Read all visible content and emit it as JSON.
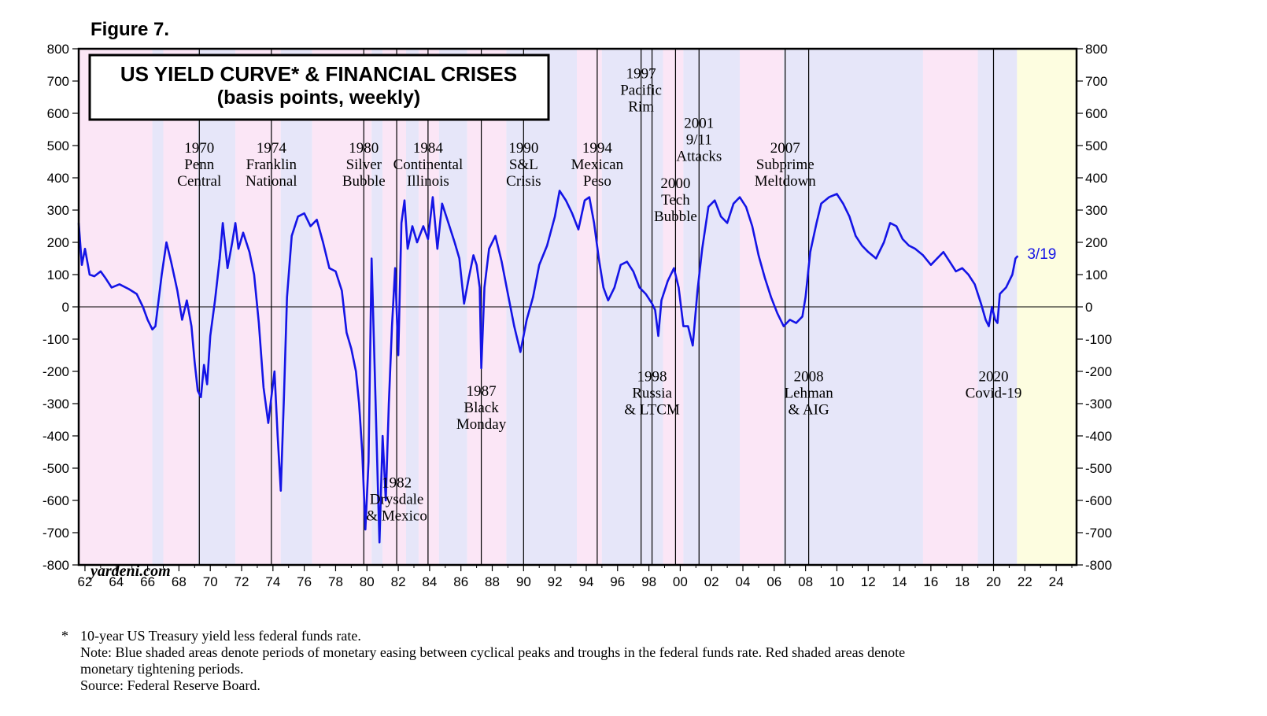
{
  "figure_label": "Figure 7.",
  "chart_data": {
    "type": "line",
    "title": "US YIELD CURVE* & FINANCIAL CRISES",
    "subtitle": "(basis points, weekly)",
    "watermark": "yardeni.com",
    "x_range": [
      1961.6,
      2025.3
    ],
    "ylim": [
      -800,
      800
    ],
    "y_ticks": [
      800,
      700,
      600,
      500,
      400,
      300,
      200,
      100,
      0,
      -100,
      -200,
      -300,
      -400,
      -500,
      -600,
      -700,
      -800
    ],
    "x_ticks": [
      {
        "year": 1962,
        "label": "62"
      },
      {
        "year": 1964,
        "label": "64"
      },
      {
        "year": 1966,
        "label": "66"
      },
      {
        "year": 1968,
        "label": "68"
      },
      {
        "year": 1970,
        "label": "70"
      },
      {
        "year": 1972,
        "label": "72"
      },
      {
        "year": 1974,
        "label": "74"
      },
      {
        "year": 1976,
        "label": "76"
      },
      {
        "year": 1978,
        "label": "78"
      },
      {
        "year": 1980,
        "label": "80"
      },
      {
        "year": 1982,
        "label": "82"
      },
      {
        "year": 1984,
        "label": "84"
      },
      {
        "year": 1986,
        "label": "86"
      },
      {
        "year": 1988,
        "label": "88"
      },
      {
        "year": 1990,
        "label": "90"
      },
      {
        "year": 1992,
        "label": "92"
      },
      {
        "year": 1994,
        "label": "94"
      },
      {
        "year": 1996,
        "label": "96"
      },
      {
        "year": 1998,
        "label": "98"
      },
      {
        "year": 2000,
        "label": "00"
      },
      {
        "year": 2002,
        "label": "02"
      },
      {
        "year": 2004,
        "label": "04"
      },
      {
        "year": 2006,
        "label": "06"
      },
      {
        "year": 2008,
        "label": "08"
      },
      {
        "year": 2010,
        "label": "10"
      },
      {
        "year": 2012,
        "label": "12"
      },
      {
        "year": 2014,
        "label": "14"
      },
      {
        "year": 2016,
        "label": "16"
      },
      {
        "year": 2018,
        "label": "18"
      },
      {
        "year": 2020,
        "label": "20"
      },
      {
        "year": 2022,
        "label": "22"
      },
      {
        "year": 2024,
        "label": "24"
      }
    ],
    "series": [
      {
        "name": "10-year US Treasury yield less federal funds rate",
        "color": "#1414e6",
        "points": [
          [
            1961.6,
            260
          ],
          [
            1961.8,
            130
          ],
          [
            1962.0,
            180
          ],
          [
            1962.3,
            100
          ],
          [
            1962.6,
            95
          ],
          [
            1963.0,
            110
          ],
          [
            1963.3,
            90
          ],
          [
            1963.7,
            60
          ],
          [
            1964.2,
            70
          ],
          [
            1964.8,
            55
          ],
          [
            1965.3,
            40
          ],
          [
            1965.7,
            0
          ],
          [
            1966.0,
            -40
          ],
          [
            1966.3,
            -70
          ],
          [
            1966.5,
            -60
          ],
          [
            1966.9,
            100
          ],
          [
            1967.2,
            200
          ],
          [
            1967.5,
            140
          ],
          [
            1967.9,
            50
          ],
          [
            1968.2,
            -40
          ],
          [
            1968.5,
            20
          ],
          [
            1968.8,
            -60
          ],
          [
            1969.0,
            -170
          ],
          [
            1969.2,
            -260
          ],
          [
            1969.4,
            -280
          ],
          [
            1969.6,
            -180
          ],
          [
            1969.8,
            -240
          ],
          [
            1970.0,
            -90
          ],
          [
            1970.3,
            20
          ],
          [
            1970.6,
            150
          ],
          [
            1970.8,
            260
          ],
          [
            1971.1,
            120
          ],
          [
            1971.4,
            200
          ],
          [
            1971.6,
            260
          ],
          [
            1971.8,
            180
          ],
          [
            1972.1,
            230
          ],
          [
            1972.5,
            170
          ],
          [
            1972.8,
            100
          ],
          [
            1973.1,
            -50
          ],
          [
            1973.4,
            -250
          ],
          [
            1973.7,
            -360
          ],
          [
            1973.9,
            -280
          ],
          [
            1974.1,
            -200
          ],
          [
            1974.3,
            -400
          ],
          [
            1974.5,
            -570
          ],
          [
            1974.7,
            -280
          ],
          [
            1974.9,
            30
          ],
          [
            1975.2,
            220
          ],
          [
            1975.6,
            280
          ],
          [
            1976.0,
            290
          ],
          [
            1976.4,
            250
          ],
          [
            1976.8,
            270
          ],
          [
            1977.2,
            200
          ],
          [
            1977.6,
            120
          ],
          [
            1978.0,
            110
          ],
          [
            1978.4,
            50
          ],
          [
            1978.7,
            -80
          ],
          [
            1979.0,
            -130
          ],
          [
            1979.3,
            -200
          ],
          [
            1979.5,
            -300
          ],
          [
            1979.7,
            -450
          ],
          [
            1979.9,
            -690
          ],
          [
            1980.1,
            -480
          ],
          [
            1980.3,
            150
          ],
          [
            1980.5,
            -200
          ],
          [
            1980.7,
            -560
          ],
          [
            1980.8,
            -730
          ],
          [
            1981.0,
            -400
          ],
          [
            1981.2,
            -600
          ],
          [
            1981.4,
            -300
          ],
          [
            1981.6,
            -60
          ],
          [
            1981.8,
            120
          ],
          [
            1982.0,
            -150
          ],
          [
            1982.2,
            260
          ],
          [
            1982.4,
            330
          ],
          [
            1982.6,
            180
          ],
          [
            1982.9,
            250
          ],
          [
            1983.2,
            200
          ],
          [
            1983.6,
            250
          ],
          [
            1983.9,
            210
          ],
          [
            1984.2,
            340
          ],
          [
            1984.5,
            180
          ],
          [
            1984.8,
            320
          ],
          [
            1985.2,
            260
          ],
          [
            1985.6,
            200
          ],
          [
            1985.9,
            150
          ],
          [
            1986.2,
            10
          ],
          [
            1986.5,
            90
          ],
          [
            1986.8,
            160
          ],
          [
            1987.0,
            130
          ],
          [
            1987.2,
            60
          ],
          [
            1987.3,
            -190
          ],
          [
            1987.5,
            60
          ],
          [
            1987.8,
            180
          ],
          [
            1988.2,
            220
          ],
          [
            1988.6,
            140
          ],
          [
            1989.0,
            40
          ],
          [
            1989.4,
            -60
          ],
          [
            1989.8,
            -140
          ],
          [
            1990.2,
            -40
          ],
          [
            1990.6,
            30
          ],
          [
            1991.0,
            130
          ],
          [
            1991.5,
            190
          ],
          [
            1992.0,
            280
          ],
          [
            1992.3,
            360
          ],
          [
            1992.7,
            330
          ],
          [
            1993.1,
            290
          ],
          [
            1993.5,
            240
          ],
          [
            1993.9,
            330
          ],
          [
            1994.2,
            340
          ],
          [
            1994.5,
            260
          ],
          [
            1994.8,
            150
          ],
          [
            1995.1,
            60
          ],
          [
            1995.4,
            20
          ],
          [
            1995.8,
            60
          ],
          [
            1996.2,
            130
          ],
          [
            1996.6,
            140
          ],
          [
            1997.0,
            110
          ],
          [
            1997.4,
            60
          ],
          [
            1997.8,
            40
          ],
          [
            1998.2,
            10
          ],
          [
            1998.4,
            -10
          ],
          [
            1998.6,
            -90
          ],
          [
            1998.8,
            20
          ],
          [
            1999.2,
            80
          ],
          [
            1999.6,
            120
          ],
          [
            1999.9,
            60
          ],
          [
            2000.2,
            -60
          ],
          [
            2000.5,
            -60
          ],
          [
            2000.8,
            -120
          ],
          [
            2001.1,
            50
          ],
          [
            2001.4,
            180
          ],
          [
            2001.8,
            310
          ],
          [
            2002.2,
            330
          ],
          [
            2002.6,
            280
          ],
          [
            2003.0,
            260
          ],
          [
            2003.4,
            320
          ],
          [
            2003.8,
            340
          ],
          [
            2004.2,
            310
          ],
          [
            2004.6,
            250
          ],
          [
            2005.0,
            160
          ],
          [
            2005.4,
            90
          ],
          [
            2005.8,
            30
          ],
          [
            2006.2,
            -20
          ],
          [
            2006.6,
            -60
          ],
          [
            2007.0,
            -40
          ],
          [
            2007.4,
            -50
          ],
          [
            2007.8,
            -30
          ],
          [
            2008.0,
            30
          ],
          [
            2008.3,
            170
          ],
          [
            2008.7,
            260
          ],
          [
            2009.0,
            320
          ],
          [
            2009.5,
            340
          ],
          [
            2010.0,
            350
          ],
          [
            2010.4,
            320
          ],
          [
            2010.8,
            280
          ],
          [
            2011.2,
            220
          ],
          [
            2011.6,
            190
          ],
          [
            2012.0,
            170
          ],
          [
            2012.5,
            150
          ],
          [
            2013.0,
            200
          ],
          [
            2013.4,
            260
          ],
          [
            2013.8,
            250
          ],
          [
            2014.2,
            210
          ],
          [
            2014.6,
            190
          ],
          [
            2015.0,
            180
          ],
          [
            2015.5,
            160
          ],
          [
            2016.0,
            130
          ],
          [
            2016.4,
            150
          ],
          [
            2016.8,
            170
          ],
          [
            2017.2,
            140
          ],
          [
            2017.6,
            110
          ],
          [
            2018.0,
            120
          ],
          [
            2018.4,
            100
          ],
          [
            2018.8,
            70
          ],
          [
            2019.2,
            10
          ],
          [
            2019.5,
            -40
          ],
          [
            2019.7,
            -60
          ],
          [
            2019.9,
            0
          ],
          [
            2020.1,
            -40
          ],
          [
            2020.25,
            -50
          ],
          [
            2020.4,
            40
          ],
          [
            2020.8,
            60
          ],
          [
            2021.2,
            100
          ],
          [
            2021.4,
            150
          ],
          [
            2021.55,
            158
          ]
        ],
        "end_label": "3/19"
      }
    ],
    "shaded_periods": [
      {
        "type": "tightening",
        "start": 1961.6,
        "end": 1966.3
      },
      {
        "type": "easing",
        "start": 1966.3,
        "end": 1967.0
      },
      {
        "type": "tightening",
        "start": 1967.0,
        "end": 1969.2
      },
      {
        "type": "easing",
        "start": 1969.2,
        "end": 1971.6
      },
      {
        "type": "tightening",
        "start": 1971.6,
        "end": 1974.5
      },
      {
        "type": "easing",
        "start": 1974.5,
        "end": 1976.5
      },
      {
        "type": "tightening",
        "start": 1976.5,
        "end": 1980.3
      },
      {
        "type": "easing",
        "start": 1980.3,
        "end": 1981.0
      },
      {
        "type": "tightening",
        "start": 1981.0,
        "end": 1982.5
      },
      {
        "type": "easing",
        "start": 1982.5,
        "end": 1983.3
      },
      {
        "type": "tightening",
        "start": 1983.3,
        "end": 1984.6
      },
      {
        "type": "easing",
        "start": 1984.6,
        "end": 1986.4
      },
      {
        "type": "tightening",
        "start": 1986.4,
        "end": 1988.9
      },
      {
        "type": "easing",
        "start": 1988.9,
        "end": 1993.4
      },
      {
        "type": "tightening",
        "start": 1993.4,
        "end": 1995.0
      },
      {
        "type": "easing",
        "start": 1995.0,
        "end": 1998.9
      },
      {
        "type": "tightening",
        "start": 1998.9,
        "end": 2000.2
      },
      {
        "type": "easing",
        "start": 2000.2,
        "end": 2003.8
      },
      {
        "type": "tightening",
        "start": 2003.8,
        "end": 2006.6
      },
      {
        "type": "easing",
        "start": 2006.6,
        "end": 2015.5
      },
      {
        "type": "tightening",
        "start": 2015.5,
        "end": 2019.0
      },
      {
        "type": "easing",
        "start": 2019.0,
        "end": 2021.5
      },
      {
        "type": "future",
        "start": 2021.5,
        "end": 2025.3
      }
    ],
    "period_colors": {
      "tightening": "#fbe6f6",
      "easing": "#e6e6f9",
      "future": "#fdfde0"
    },
    "events": [
      {
        "year": 1969.3,
        "lines": [
          "1970",
          "Penn",
          "Central"
        ],
        "label_y": 478
      },
      {
        "year": 1973.9,
        "lines": [
          "1974",
          "Franklin",
          "National"
        ],
        "label_y": 478
      },
      {
        "year": 1979.8,
        "lines": [
          "1980",
          "Silver",
          "Bubble"
        ],
        "label_y": 478
      },
      {
        "year": 1981.9,
        "lines": [
          "1982",
          "Drysdale",
          "& Mexico"
        ],
        "label_y": -560
      },
      {
        "year": 1983.9,
        "lines": [
          "1984",
          "Continental",
          "Illinois"
        ],
        "label_y": 478
      },
      {
        "year": 1987.3,
        "lines": [
          "1987",
          "Black",
          "Monday"
        ],
        "label_y": -275
      },
      {
        "year": 1990.0,
        "lines": [
          "1990",
          "S&L",
          "Crisis"
        ],
        "label_y": 478
      },
      {
        "year": 1994.7,
        "lines": [
          "1994",
          "Mexican",
          "Peso"
        ],
        "label_y": 478
      },
      {
        "year": 1997.5,
        "lines": [
          "1997",
          "Pacific",
          "Rim"
        ],
        "label_y": 708
      },
      {
        "year": 1998.2,
        "lines": [
          "1998",
          "Russia",
          "& LTCM"
        ],
        "label_y": -230
      },
      {
        "year": 1999.7,
        "lines": [
          "2000",
          "Tech",
          "Bubble"
        ],
        "label_y": 368
      },
      {
        "year": 2001.2,
        "lines": [
          "2001",
          "9/11",
          "Attacks"
        ],
        "label_y": 555
      },
      {
        "year": 2006.7,
        "lines": [
          "2007",
          "Subprime",
          "Meltdown"
        ],
        "label_y": 478
      },
      {
        "year": 2008.2,
        "lines": [
          "2008",
          "Lehman",
          "& AIG"
        ],
        "label_y": -230
      },
      {
        "year": 2020.0,
        "lines": [
          "2020",
          "Covid-19"
        ],
        "label_y": -230
      }
    ]
  },
  "footnote": {
    "asterisk": "*",
    "line1": "10-year US Treasury yield less federal funds rate.",
    "line2": "Note: Blue shaded areas denote periods of monetary easing between cyclical peaks and troughs in the federal funds rate. Red shaded areas denote",
    "line3": "monetary tightening periods.",
    "line4": "Source: Federal Reserve Board."
  }
}
